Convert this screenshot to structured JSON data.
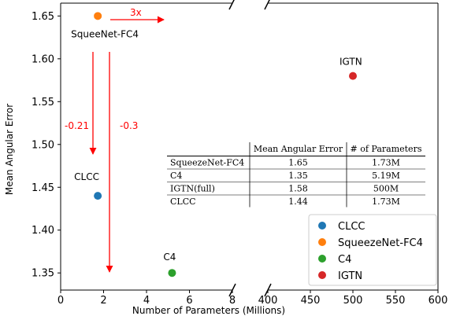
{
  "chart_data": {
    "type": "scatter",
    "xlabel": "Number of Parameters (Millions)",
    "ylabel": "Mean Angular Error",
    "ylim": [
      1.33,
      1.665
    ],
    "broken_x_axis": true,
    "x_segments": [
      {
        "range": [
          0,
          8
        ],
        "ticks": [
          0,
          2,
          4,
          6,
          8
        ]
      },
      {
        "range": [
          400,
          600
        ],
        "ticks": [
          400,
          450,
          500,
          550,
          600
        ]
      }
    ],
    "y_ticks": [
      1.35,
      1.4,
      1.45,
      1.5,
      1.55,
      1.6,
      1.65
    ],
    "grid": false,
    "legend_position": "bottom-right",
    "series": [
      {
        "name": "CLCC",
        "color": "#1f77b4",
        "x": [
          1.73
        ],
        "y": [
          1.44
        ],
        "label": "CLCC"
      },
      {
        "name": "SqueezeNet-FC4",
        "color": "#ff7f0e",
        "x": [
          1.73
        ],
        "y": [
          1.65
        ],
        "label": "SqueeNet-FC4"
      },
      {
        "name": "C4",
        "color": "#2ca02c",
        "x": [
          5.19
        ],
        "y": [
          1.35
        ],
        "label": "C4"
      },
      {
        "name": "IGTN",
        "color": "#d62728",
        "x": [
          500
        ],
        "y": [
          1.58
        ],
        "label": "IGTN"
      }
    ],
    "annotations": [
      {
        "text": "3x",
        "color": "#ff0000"
      },
      {
        "text": "-0.21",
        "color": "#ff0000"
      },
      {
        "text": "-0.3",
        "color": "#ff0000"
      }
    ],
    "table": {
      "headers": [
        "",
        "Mean Angular Error",
        "# of Parameters"
      ],
      "rows": [
        [
          "SqueezeNet-FC4",
          "1.65",
          "1.73M"
        ],
        [
          "C4",
          "1.35",
          "5.19M"
        ],
        [
          "IGTN(full)",
          "1.58",
          "500M"
        ],
        [
          "CLCC",
          "1.44",
          "1.73M"
        ]
      ]
    }
  }
}
